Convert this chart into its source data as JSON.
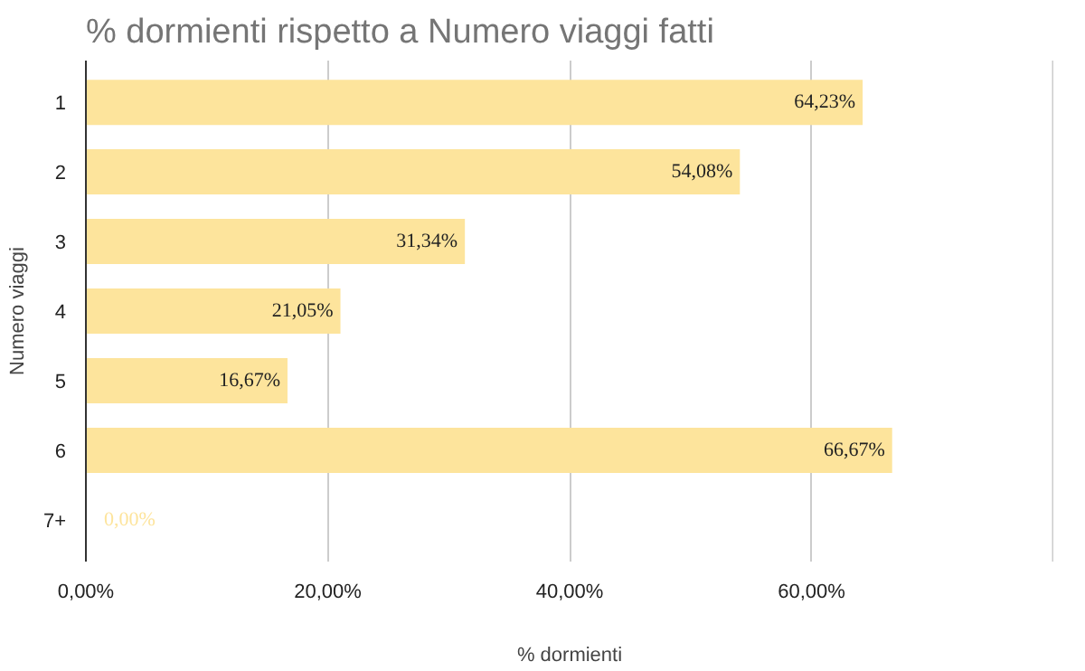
{
  "chart_data": {
    "type": "bar",
    "orientation": "horizontal",
    "title": "% dormienti rispetto a Numero viaggi fatti",
    "xlabel": "% dormienti",
    "ylabel": "Numero viaggi",
    "categories": [
      "1",
      "2",
      "3",
      "4",
      "5",
      "6",
      "7+"
    ],
    "values": [
      64.23,
      54.08,
      31.34,
      21.05,
      16.67,
      66.67,
      0
    ],
    "value_labels": [
      "64,23%",
      "54,08%",
      "31,34%",
      "21,05%",
      "16,67%",
      "66,67%",
      "0,00%"
    ],
    "color": "#fde49c",
    "xlim": [
      0,
      80
    ],
    "xticks": [
      {
        "value": 0,
        "label": "0,00%"
      },
      {
        "value": 20,
        "label": "20,00%"
      },
      {
        "value": 40,
        "label": "40,00%"
      },
      {
        "value": 60,
        "label": "60,00%"
      },
      {
        "value": 80,
        "label": null
      }
    ],
    "grid": "x"
  }
}
